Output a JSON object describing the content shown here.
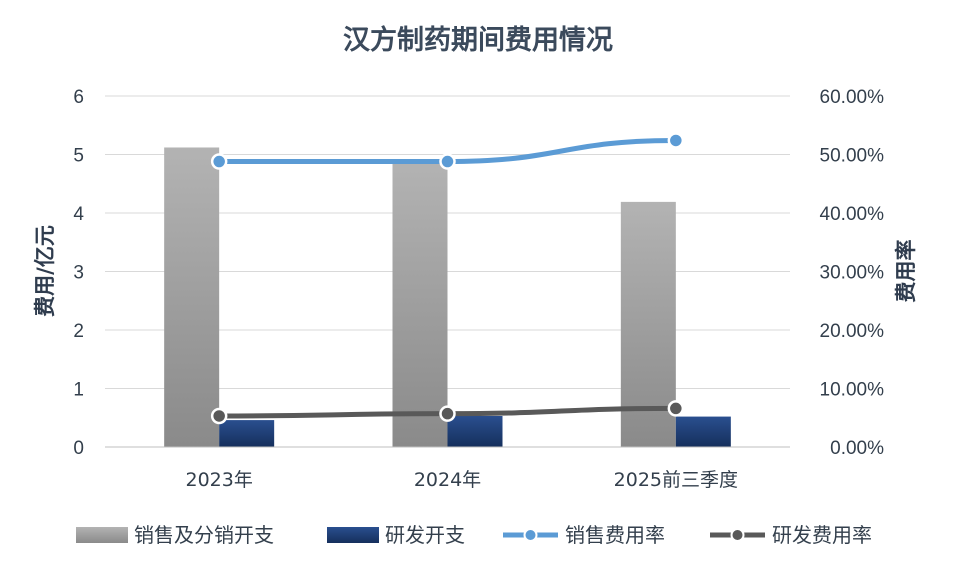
{
  "chart_data": {
    "type": "bar",
    "title": "汉方制药期间费用情况",
    "categories": [
      "2023年",
      "2024年",
      "2025前三季度"
    ],
    "y_left": {
      "label": "费用/亿元",
      "range": [
        0,
        6
      ],
      "ticks": [
        "0",
        "1",
        "2",
        "3",
        "4",
        "5",
        "6"
      ]
    },
    "y_right": {
      "label": "费用率",
      "range": [
        0,
        0.6
      ],
      "ticks": [
        "0.00%",
        "10.00%",
        "20.00%",
        "30.00%",
        "40.00%",
        "50.00%",
        "60.00%"
      ]
    },
    "series": [
      {
        "name": "销售及分销开支",
        "kind": "bar",
        "axis": "left",
        "values": [
          5.12,
          4.88,
          4.19
        ],
        "color": "#a6a6a6"
      },
      {
        "name": "研发开支",
        "kind": "bar",
        "axis": "left",
        "values": [
          0.46,
          0.53,
          0.52
        ],
        "color": "#1f3f7a"
      },
      {
        "name": "销售费用率",
        "kind": "line",
        "axis": "right",
        "values": [
          0.488,
          0.488,
          0.524
        ],
        "color": "#5b9bd5"
      },
      {
        "name": "研发费用率",
        "kind": "line",
        "axis": "right",
        "values": [
          0.053,
          0.057,
          0.066
        ],
        "color": "#595959"
      }
    ],
    "grid": true,
    "legend_position": "bottom"
  }
}
